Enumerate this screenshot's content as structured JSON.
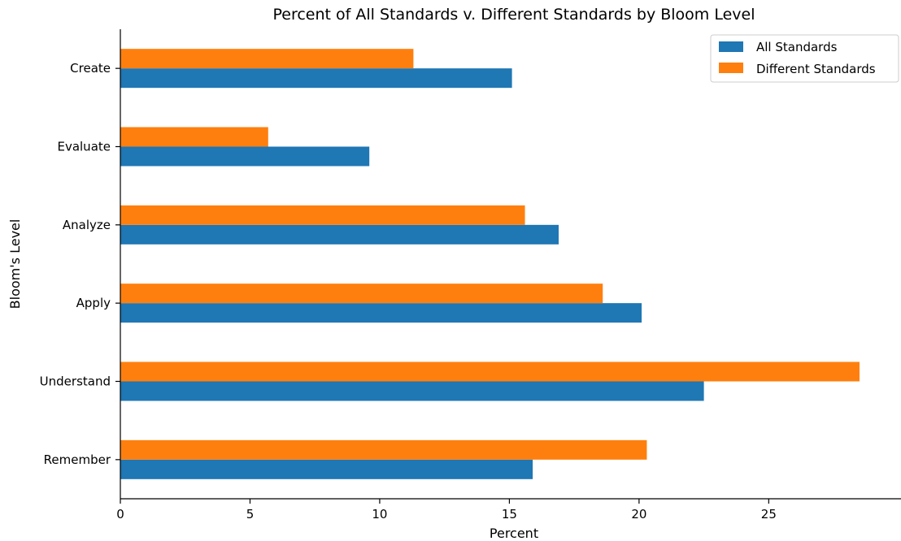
{
  "chart_data": {
    "type": "bar",
    "orientation": "horizontal",
    "title": "Percent of All Standards v. Different Standards by Bloom Level",
    "xlabel": "Percent",
    "ylabel": "Bloom's Level",
    "categories": [
      "Remember",
      "Understand",
      "Apply",
      "Analyze",
      "Evaluate",
      "Create"
    ],
    "series": [
      {
        "name": "All Standards",
        "color": "#1f77b4",
        "values": [
          15.9,
          22.5,
          20.1,
          16.9,
          9.6,
          15.1
        ]
      },
      {
        "name": "Different Standards",
        "color": "#ff7f0e",
        "values": [
          20.3,
          28.5,
          18.6,
          15.6,
          5.7,
          11.3
        ]
      }
    ],
    "xlim": [
      0,
      30.1
    ],
    "xticks": [
      0,
      5,
      10,
      15,
      20,
      25
    ],
    "grid": false,
    "legend_position": "top-right"
  }
}
